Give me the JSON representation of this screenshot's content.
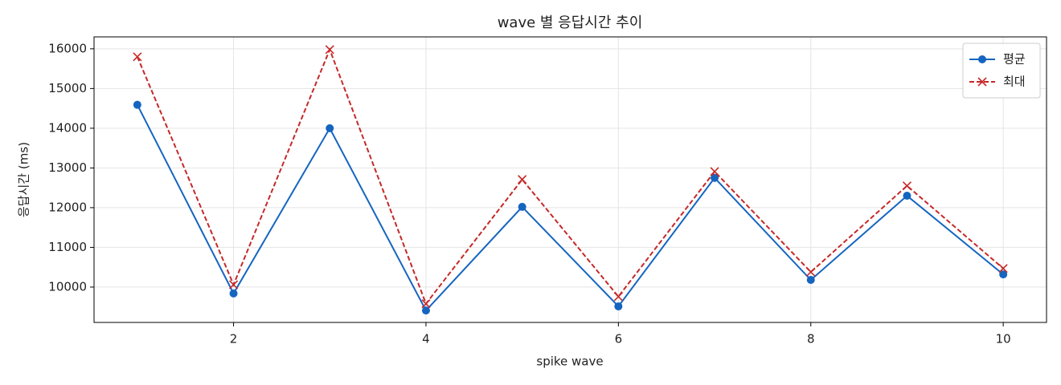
{
  "chart_data": {
    "type": "line",
    "title": "wave 별 응답시간 추이",
    "xlabel": "spike wave",
    "ylabel": "응답시간 (ms)",
    "x": [
      1,
      2,
      3,
      4,
      5,
      6,
      7,
      8,
      9,
      10
    ],
    "series": [
      {
        "name": "평균",
        "color": "#1565c0",
        "marker": "o",
        "linestyle": "solid",
        "values": [
          14590,
          9840,
          14000,
          9410,
          12020,
          9515,
          12750,
          10180,
          12300,
          10320
        ]
      },
      {
        "name": "최대",
        "color": "#c62828",
        "marker": "x",
        "linestyle": "dashed",
        "values": [
          15800,
          10060,
          15980,
          9580,
          12710,
          9760,
          12910,
          10380,
          12550,
          10470
        ]
      }
    ],
    "xlim": [
      0.55,
      10.45
    ],
    "ylim": [
      9110,
      16300
    ],
    "xticks": [
      2,
      4,
      6,
      8,
      10
    ],
    "yticks": [
      10000,
      11000,
      12000,
      13000,
      14000,
      15000,
      16000
    ],
    "grid": true,
    "legend": "upper right"
  }
}
